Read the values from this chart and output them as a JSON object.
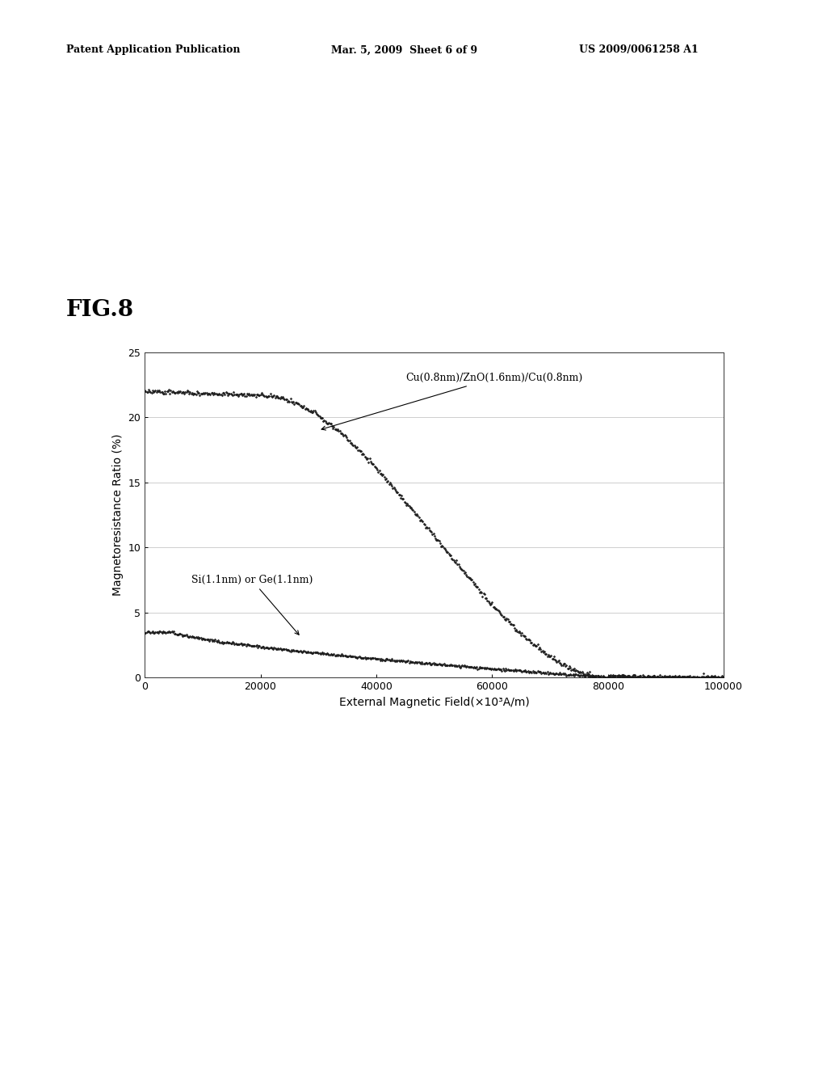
{
  "header_left": "Patent Application Publication",
  "header_mid": "Mar. 5, 2009  Sheet 6 of 9",
  "header_right": "US 2009/0061258 A1",
  "fig_label": "FIG.8",
  "xlabel": "External Magnetic Field(×10³A/m)",
  "ylabel": "Magnetoresistance Ratio (%)",
  "xlim": [
    0,
    100000
  ],
  "ylim": [
    0,
    25
  ],
  "xticks": [
    0,
    20000,
    40000,
    60000,
    80000,
    100000
  ],
  "xtick_labels": [
    "0",
    "20000",
    "40000",
    "60000",
    "80000",
    "100000"
  ],
  "yticks": [
    0,
    5,
    10,
    15,
    20,
    25
  ],
  "curve1_label": "Cu(0.8nm)/ZnO(1.6nm)/Cu(0.8nm)",
  "curve2_label": "Si(1.1nm) or Ge(1.1nm)",
  "background_color": "#ffffff",
  "curve_color": "#1a1a1a",
  "header_fontsize": 9,
  "fig_label_fontsize": 20,
  "axis_fontsize": 9,
  "annotation_fontsize": 9
}
